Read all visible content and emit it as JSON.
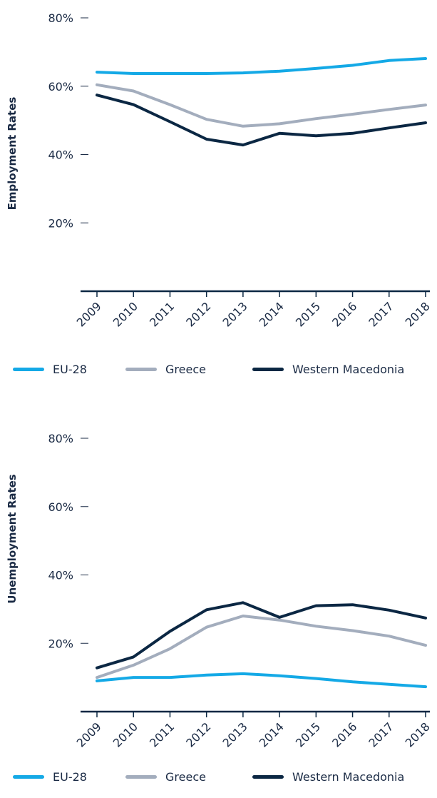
{
  "chart_data": [
    {
      "type": "line",
      "ylabel": "Employment Rates",
      "xlabel": "",
      "ylim": [
        0,
        80
      ],
      "y_ticks": [
        "80%",
        "60%",
        "40%",
        "20%",
        ""
      ],
      "y_tick_values": [
        80,
        60,
        40,
        20,
        0
      ],
      "categories": [
        "2009",
        "2010",
        "2011",
        "2012",
        "2013",
        "2014",
        "2015",
        "2016",
        "2017",
        "2018"
      ],
      "grid": false,
      "legend_position": "bottom",
      "series": [
        {
          "name": "EU-28",
          "color": "#14a9e6",
          "values": [
            64.1,
            63.7,
            63.7,
            63.7,
            63.9,
            64.4,
            65.2,
            66.1,
            67.5,
            68.1
          ]
        },
        {
          "name": "Greece",
          "color": "#a3adbd",
          "values": [
            60.4,
            58.6,
            54.6,
            50.3,
            48.3,
            49.0,
            50.5,
            51.8,
            53.2,
            54.5
          ]
        },
        {
          "name": "Western Macedonia",
          "color": "#0b2743",
          "values": [
            57.4,
            54.6,
            49.6,
            44.5,
            42.8,
            46.2,
            45.5,
            46.2,
            47.8,
            49.3
          ]
        }
      ]
    },
    {
      "type": "line",
      "ylabel": "Unemployment Rates",
      "xlabel": "",
      "ylim": [
        0,
        80
      ],
      "y_ticks": [
        "80%",
        "60%",
        "40%",
        "20%",
        ""
      ],
      "y_tick_values": [
        80,
        60,
        40,
        20,
        0
      ],
      "categories": [
        "2009",
        "2010",
        "2011",
        "2012",
        "2013",
        "2014",
        "2015",
        "2016",
        "2017",
        "2018"
      ],
      "grid": false,
      "legend_position": "bottom",
      "series": [
        {
          "name": "EU-28",
          "color": "#14a9e6",
          "values": [
            9.0,
            10.0,
            10.0,
            10.7,
            11.1,
            10.5,
            9.7,
            8.7,
            8.0,
            7.3
          ]
        },
        {
          "name": "Greece",
          "color": "#a3adbd",
          "values": [
            10.0,
            13.6,
            18.4,
            24.7,
            28.0,
            26.8,
            25.0,
            23.7,
            22.1,
            19.4
          ]
        },
        {
          "name": "Western Macedonia",
          "color": "#0b2743",
          "values": [
            12.8,
            16.0,
            23.5,
            29.8,
            31.9,
            27.6,
            31.0,
            31.3,
            29.7,
            27.4
          ]
        }
      ]
    }
  ]
}
